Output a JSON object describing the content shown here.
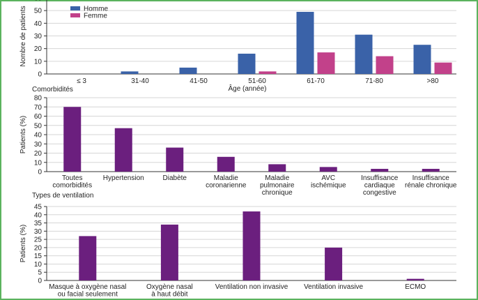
{
  "colors": {
    "frame": "#5bb35e",
    "grid": "#d6d6d6",
    "axis": "#333333",
    "homme": "#3a62a8",
    "femme": "#c2418a",
    "purple": "#6b1f7e"
  },
  "chart_data": [
    {
      "type": "bar",
      "title": "",
      "xlabel": "Âge (année)",
      "ylabel": "Nombre de patients",
      "ylim": [
        0,
        60
      ],
      "yticks": [
        0,
        10,
        20,
        30,
        40,
        50,
        60
      ],
      "grid": true,
      "legend_position": "top-left",
      "categories": [
        "≤ 3",
        "31-40",
        "41-50",
        "51-60",
        "61-70",
        "71-80",
        ">80"
      ],
      "series": [
        {
          "name": "Homme",
          "color": "#3a62a8",
          "values": [
            0,
            2,
            5,
            16,
            49,
            31,
            23
          ]
        },
        {
          "name": "Femme",
          "color": "#c2418a",
          "values": [
            0,
            0,
            0,
            2,
            17,
            14,
            9
          ]
        }
      ]
    },
    {
      "type": "bar",
      "title": "Comorbidités",
      "xlabel": "",
      "ylabel": "Patients (%)",
      "ylim": [
        0,
        80
      ],
      "yticks": [
        0,
        10,
        20,
        30,
        40,
        50,
        60,
        70,
        80
      ],
      "grid": true,
      "categories": [
        [
          "Toutes",
          "comorbidités"
        ],
        [
          "Hypertension"
        ],
        [
          "Diabète"
        ],
        [
          "Maladie",
          "coronarienne"
        ],
        [
          "Maladie",
          "pulmonaire",
          "chronique"
        ],
        [
          "AVC",
          "ischémique"
        ],
        [
          "Insuffisance",
          "cardiaque",
          "congestive"
        ],
        [
          "Insuffisance",
          "rénale chronique"
        ]
      ],
      "series": [
        {
          "name": "",
          "color": "#6b1f7e",
          "values": [
            70,
            47,
            26,
            16,
            8,
            5,
            3,
            3
          ]
        }
      ]
    },
    {
      "type": "bar",
      "title": "Types de ventilation",
      "xlabel": "",
      "ylabel": "Patients (%)",
      "ylim": [
        0,
        45
      ],
      "yticks": [
        0,
        5,
        10,
        15,
        20,
        25,
        30,
        35,
        40,
        45
      ],
      "grid": true,
      "categories": [
        [
          "Masque à oxygène nasal",
          "ou facial seulement"
        ],
        [
          "Oxygène nasal",
          "à haut débit"
        ],
        [
          "Ventilation non invasive"
        ],
        [
          "Ventilation invasive"
        ],
        [
          "ECMO"
        ]
      ],
      "series": [
        {
          "name": "",
          "color": "#6b1f7e",
          "values": [
            27,
            34,
            42,
            20,
            1
          ]
        }
      ]
    }
  ]
}
